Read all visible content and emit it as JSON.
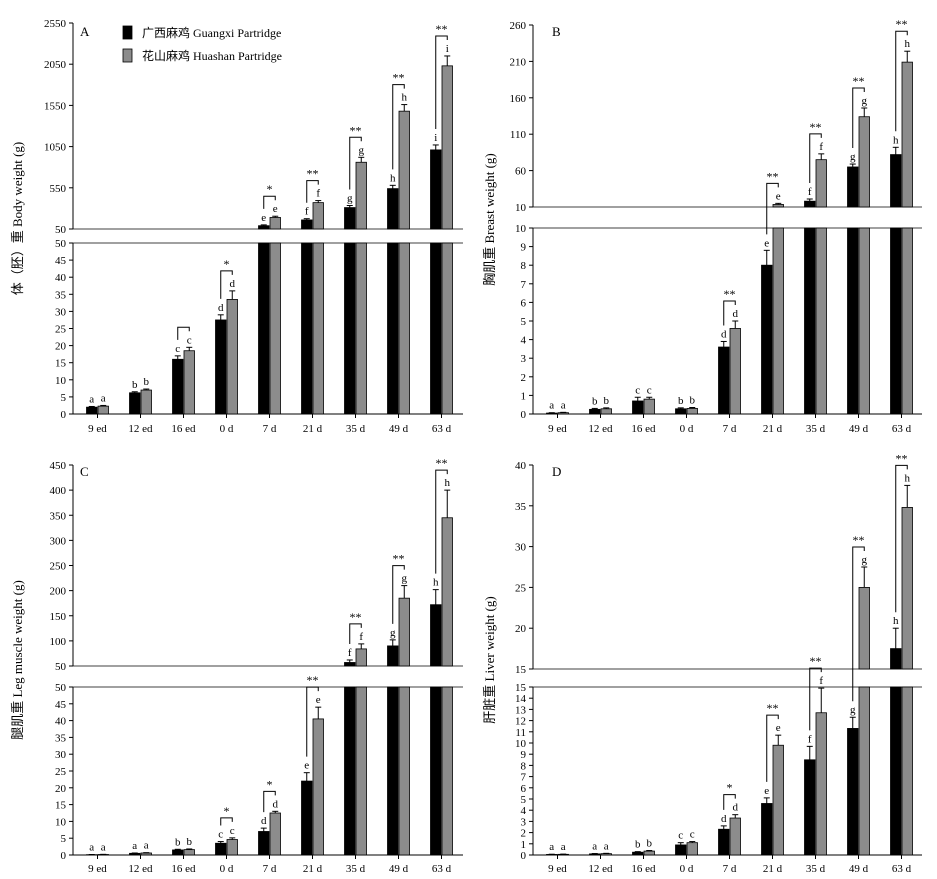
{
  "legend": {
    "guangxi": "广西麻鸡 Guangxi Partridge",
    "huashan": "花山麻鸡 Huashan Partridge"
  },
  "colors": {
    "guangxi": "#000000",
    "huashan": "#8c8c8c"
  },
  "categories": [
    "9 ed",
    "12 ed",
    "16 ed",
    "0 d",
    "7 d",
    "21 d",
    "35 d",
    "49 d",
    "63 d"
  ],
  "chart_data": [
    {
      "type": "bar",
      "panel": "A",
      "ylabel": "体（胚）重 Body weight (g)",
      "categories": [
        "9 ed",
        "12 ed",
        "16 ed",
        "0 d",
        "7 d",
        "21 d",
        "35 d",
        "49 d",
        "63 d"
      ],
      "series": [
        {
          "name": "广西麻鸡 Guangxi Partridge",
          "values": [
            2,
            6.2,
            16,
            27.5,
            90,
            160,
            310,
            540,
            1010
          ],
          "errors": [
            0.2,
            0.3,
            1.0,
            1.5,
            10,
            15,
            25,
            40,
            60
          ],
          "letters": [
            "a",
            "b",
            "c",
            "d",
            "e",
            "f",
            "g",
            "h",
            "i"
          ]
        },
        {
          "name": "花山麻鸡 Huashan Partridge",
          "values": [
            2.3,
            7,
            18.5,
            33.5,
            190,
            370,
            860,
            1480,
            2030
          ],
          "errors": [
            0.2,
            0.3,
            1.0,
            2.5,
            15,
            25,
            60,
            80,
            120
          ],
          "letters": [
            "a",
            "b",
            "c",
            "d",
            "e",
            "f",
            "g",
            "h",
            "i"
          ]
        }
      ],
      "significance": [
        "",
        "",
        "",
        "*",
        "*",
        "**",
        "**",
        "**",
        "**"
      ],
      "broken_axis": {
        "lower_range": [
          0,
          50
        ],
        "lower_ticks": [
          0,
          5,
          10,
          15,
          20,
          25,
          30,
          35,
          40,
          45,
          50
        ],
        "upper_range": [
          50,
          2550
        ],
        "upper_ticks": [
          50,
          550,
          1050,
          1550,
          2050,
          2550
        ]
      }
    },
    {
      "type": "bar",
      "panel": "B",
      "ylabel": "胸肌重 Breast weight (g)",
      "categories": [
        "9 ed",
        "12 ed",
        "16 ed",
        "0 d",
        "7 d",
        "21 d",
        "35 d",
        "49 d",
        "63 d"
      ],
      "series": [
        {
          "name": "广西麻鸡 Guangxi Partridge",
          "values": [
            0.05,
            0.25,
            0.7,
            0.28,
            3.6,
            8.0,
            18,
            65,
            82
          ],
          "errors": [
            0.02,
            0.05,
            0.2,
            0.05,
            0.3,
            0.8,
            3,
            4,
            10
          ],
          "letters": [
            "a",
            "b",
            "c",
            "b",
            "d",
            "e",
            "f",
            "g",
            "h"
          ]
        },
        {
          "name": "花山麻鸡 Huashan Partridge",
          "values": [
            0.07,
            0.28,
            0.8,
            0.3,
            4.6,
            13.5,
            75,
            134,
            209
          ],
          "errors": [
            0.02,
            0.05,
            0.1,
            0.05,
            0.4,
            1.5,
            8,
            12,
            15
          ],
          "letters": [
            "a",
            "b",
            "c",
            "b",
            "d",
            "e",
            "f",
            "g",
            "h"
          ]
        }
      ],
      "significance": [
        "",
        "",
        "",
        "",
        "**",
        "**",
        "**",
        "**",
        "**"
      ],
      "broken_axis": {
        "lower_range": [
          0,
          10
        ],
        "lower_ticks": [
          0,
          1,
          2,
          3,
          4,
          5,
          6,
          7,
          8,
          9,
          10
        ],
        "upper_range": [
          10,
          260
        ],
        "upper_ticks": [
          10,
          60,
          110,
          160,
          210,
          260
        ]
      }
    },
    {
      "type": "bar",
      "panel": "C",
      "ylabel": "腿肌重 Leg muscle weight (g)",
      "categories": [
        "9 ed",
        "12 ed",
        "16 ed",
        "0 d",
        "7 d",
        "21 d",
        "35 d",
        "49 d",
        "63 d"
      ],
      "series": [
        {
          "name": "广西麻鸡 Guangxi Partridge",
          "values": [
            0.1,
            0.5,
            1.5,
            3.5,
            7,
            22,
            57,
            90,
            172
          ],
          "errors": [
            0.05,
            0.1,
            0.2,
            0.5,
            1.0,
            2.5,
            5,
            12,
            30
          ],
          "letters": [
            "a",
            "a",
            "b",
            "c",
            "d",
            "e",
            "f",
            "g",
            "h"
          ]
        },
        {
          "name": "花山麻鸡 Huashan Partridge",
          "values": [
            0.15,
            0.6,
            1.6,
            4.6,
            12.5,
            40.5,
            84,
            185,
            345
          ],
          "errors": [
            0.05,
            0.1,
            0.2,
            0.5,
            0.5,
            3.5,
            10,
            25,
            55
          ],
          "letters": [
            "a",
            "a",
            "b",
            "c",
            "d",
            "e",
            "f",
            "g",
            "h"
          ]
        }
      ],
      "significance": [
        "",
        "",
        "",
        "*",
        "*",
        "**",
        "**",
        "**",
        "**"
      ],
      "broken_axis": {
        "lower_range": [
          0,
          50
        ],
        "lower_ticks": [
          0,
          5,
          10,
          15,
          20,
          25,
          30,
          35,
          40,
          45,
          50
        ],
        "upper_range": [
          50,
          450
        ],
        "upper_ticks": [
          50,
          100,
          150,
          200,
          250,
          300,
          350,
          400,
          450
        ]
      }
    },
    {
      "type": "bar",
      "panel": "D",
      "ylabel": "肝脏重 Liver weight (g)",
      "categories": [
        "9 ed",
        "12 ed",
        "16 ed",
        "0 d",
        "7 d",
        "21 d",
        "35 d",
        "49 d",
        "63 d"
      ],
      "series": [
        {
          "name": "广西麻鸡 Guangxi Partridge",
          "values": [
            0.05,
            0.1,
            0.25,
            0.9,
            2.3,
            4.6,
            8.5,
            11.3,
            17.5
          ],
          "errors": [
            0.02,
            0.03,
            0.05,
            0.2,
            0.3,
            0.5,
            1.2,
            1.0,
            2.5
          ],
          "letters": [
            "a",
            "a",
            "b",
            "c",
            "d",
            "e",
            "f",
            "g",
            "h"
          ]
        },
        {
          "name": "花山麻鸡 Huashan Partridge",
          "values": [
            0.06,
            0.12,
            0.35,
            1.1,
            3.3,
            9.8,
            12.7,
            25,
            34.8
          ],
          "errors": [
            0.02,
            0.03,
            0.05,
            0.1,
            0.3,
            0.9,
            2.2,
            2.5,
            2.7
          ],
          "letters": [
            "a",
            "a",
            "b",
            "c",
            "d",
            "e",
            "f",
            "g",
            "h"
          ]
        }
      ],
      "significance": [
        "",
        "",
        "",
        "",
        "*",
        "**",
        "**",
        "**",
        "**"
      ],
      "broken_axis": {
        "lower_range": [
          0,
          15
        ],
        "lower_ticks": [
          0,
          1,
          2,
          3,
          4,
          5,
          6,
          7,
          8,
          9,
          10,
          11,
          12,
          13,
          14,
          15
        ],
        "upper_range": [
          15,
          40
        ],
        "upper_ticks": [
          15,
          20,
          25,
          30,
          35,
          40
        ]
      }
    }
  ]
}
